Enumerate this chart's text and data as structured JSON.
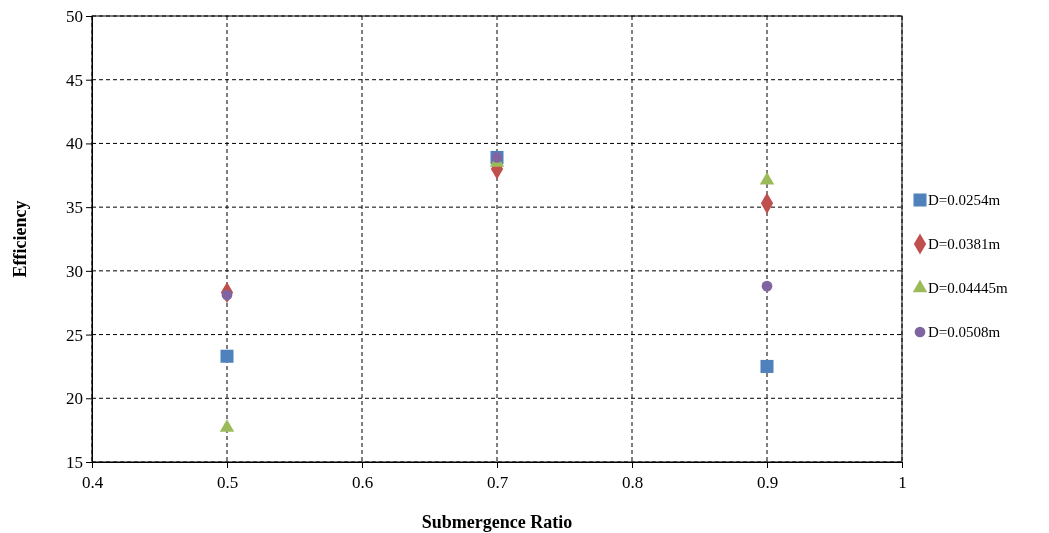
{
  "chart_data": {
    "type": "scatter",
    "xlabel": "Submergence Ratio",
    "ylabel": "Efficiency",
    "x": [
      0.5,
      0.7,
      0.9
    ],
    "series": [
      {
        "name": "D=0.0254m",
        "color": "#4f81bd",
        "marker": "square",
        "values": [
          23.3,
          38.9,
          22.5
        ]
      },
      {
        "name": "D=0.0381m",
        "color": "#c0504d",
        "marker": "diamond",
        "values": [
          28.3,
          38.0,
          35.3
        ]
      },
      {
        "name": "D=0.04445m",
        "color": "#9bbb59",
        "marker": "triangle",
        "values": [
          17.7,
          38.5,
          37.1
        ]
      },
      {
        "name": "D=0.0508m",
        "color": "#8064a2",
        "marker": "circle",
        "values": [
          28.1,
          38.9,
          28.8
        ]
      }
    ],
    "xlim": [
      0.4,
      1
    ],
    "xticks": [
      0.4,
      0.5,
      0.6,
      0.7,
      0.8,
      0.9,
      1
    ],
    "ylim": [
      15,
      50
    ],
    "yticks": [
      15,
      20,
      25,
      30,
      35,
      40,
      45,
      50
    ],
    "grid": true,
    "legend": "right"
  }
}
